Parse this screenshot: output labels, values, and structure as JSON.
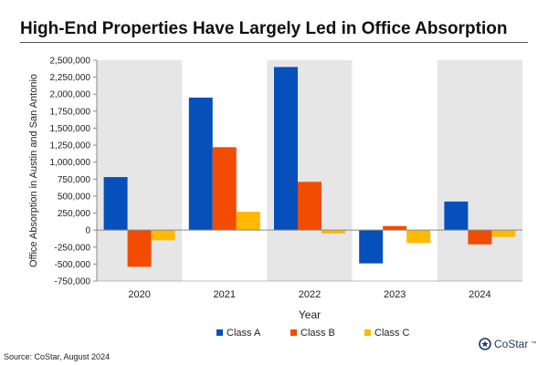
{
  "title": "High-End Properties Have Largely Led in Office Absorption",
  "source": "Source: CoStar, August 2024",
  "logo_text": "CoStar",
  "logo_mark": "™",
  "colors": {
    "class_a": "#0550BA",
    "class_b": "#F24B02",
    "class_c": "#FFB901",
    "band": "#E6E6E6",
    "title_rule": "#555555"
  },
  "chart_data": {
    "type": "bar",
    "title": "High-End Properties Have Largely Led in Office Absorption",
    "xlabel": "Year",
    "ylabel": "Office Absorption in Austin and San Antonio",
    "ylim": [
      -750000,
      2500000
    ],
    "yticks": [
      2500000,
      2250000,
      2000000,
      1750000,
      1500000,
      1250000,
      1000000,
      750000,
      500000,
      250000,
      0,
      -250000,
      -500000,
      -750000
    ],
    "ytick_labels": [
      "2,500,000",
      "2,250,000",
      "2,000,000",
      "1,750,000",
      "1,500,000",
      "1,250,000",
      "1,000,000",
      "750,000",
      "500,000",
      "250,000",
      "0",
      "-250,000",
      "-500,000",
      "-750,000"
    ],
    "categories": [
      "2020",
      "2021",
      "2022",
      "2023",
      "2024"
    ],
    "shaded_categories": [
      "2020",
      "2022",
      "2024"
    ],
    "legend_position": "bottom-center",
    "series": [
      {
        "name": "Class A",
        "values": [
          780000,
          1950000,
          2400000,
          -490000,
          420000
        ]
      },
      {
        "name": "Class B",
        "values": [
          -540000,
          1220000,
          710000,
          60000,
          -210000
        ]
      },
      {
        "name": "Class C",
        "values": [
          -150000,
          270000,
          -50000,
          -190000,
          -100000
        ]
      }
    ]
  }
}
